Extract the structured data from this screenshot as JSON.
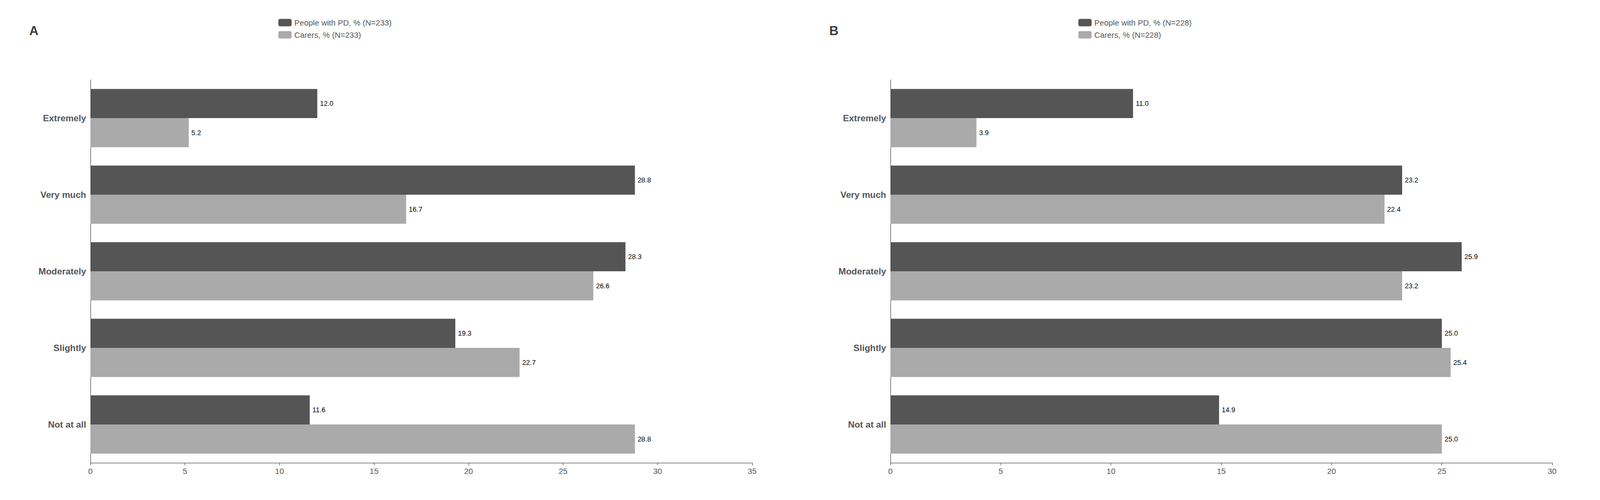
{
  "chart_data": [
    {
      "type": "bar",
      "orientation": "horizontal",
      "title": "A",
      "categories": [
        "Not at all",
        "Slightly",
        "Moderately",
        "Very much",
        "Extremely"
      ],
      "series": [
        {
          "name": "People with PD, % (N=233)",
          "color": "#555555",
          "values": [
            11.6,
            19.3,
            28.3,
            28.8,
            12.0
          ],
          "value_labels": [
            "11.6",
            "19.3",
            "28.3",
            "28.8",
            "12.0"
          ]
        },
        {
          "name": "Carers, % (N=233)",
          "color": "#aaaaaa",
          "values": [
            28.8,
            22.7,
            26.6,
            16.7,
            5.2
          ],
          "value_labels": [
            "28.8",
            "22.7",
            "26.6",
            "16.7",
            "5.2"
          ]
        }
      ],
      "xlim": [
        0,
        35
      ],
      "xticks": [
        0,
        5,
        10,
        15,
        20,
        25,
        30,
        35
      ],
      "grid": false,
      "legend": "upper left",
      "data_labels": true
    },
    {
      "type": "bar",
      "orientation": "horizontal",
      "title": "B",
      "categories": [
        "Not at all",
        "Slightly",
        "Moderately",
        "Very much",
        "Extremely"
      ],
      "series": [
        {
          "name": "People with PD, % (N=228)",
          "color": "#555555",
          "values": [
            14.9,
            25.0,
            25.9,
            23.2,
            11.0
          ],
          "value_labels": [
            "14.9",
            "25.0",
            "25.9",
            "23.2",
            "11.0"
          ]
        },
        {
          "name": "Carers, % (N=228)",
          "color": "#aaaaaa",
          "values": [
            25.0,
            25.4,
            23.2,
            22.4,
            3.9
          ],
          "value_labels": [
            "25.0",
            "25.4",
            "23.2",
            "22.4",
            "3.9"
          ]
        }
      ],
      "xlim": [
        0,
        30
      ],
      "xticks": [
        0,
        5,
        10,
        15,
        20,
        25,
        30
      ],
      "grid": false,
      "legend": "upper left",
      "data_labels": true
    }
  ]
}
